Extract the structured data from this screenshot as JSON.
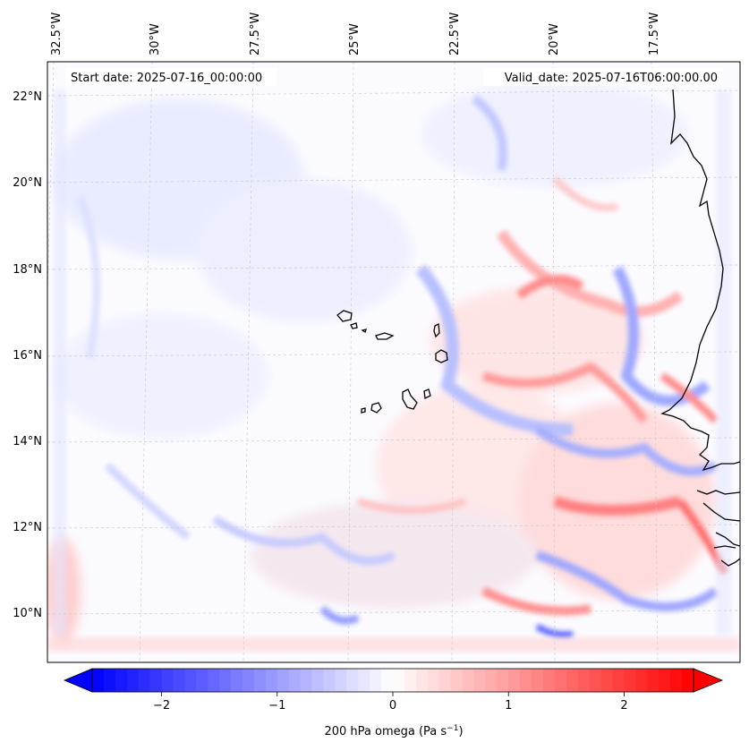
{
  "header": {
    "start_date": "Start date: 2025-07-16_00:00:00",
    "valid_date": "Valid_date: 2025-07-16T06:00:00.00"
  },
  "map": {
    "projection": "lambert-conformal",
    "region": "Eastern tropical Atlantic / West Africa coast incl. Cape Verde",
    "lon_labels": [
      "32.5°W",
      "30°W",
      "27.5°W",
      "25°W",
      "22.5°W",
      "20°W",
      "17.5°W"
    ],
    "lat_labels": [
      "22°N",
      "20°N",
      "18°N",
      "16°N",
      "14°N",
      "12°N",
      "10°N"
    ],
    "gridlines": "dashed-grey",
    "field": "200 hPa vertical velocity (omega)"
  },
  "colorbar": {
    "label": "200 hPa omega (Pa s",
    "label_sup": "−1",
    "label_close": ")",
    "range": [
      -2.6,
      2.6
    ],
    "ticks": [
      "−2",
      "−1",
      "0",
      "1",
      "2"
    ],
    "tick_values": [
      -2,
      -1,
      0,
      1,
      2
    ],
    "colormap": "bwr",
    "extend": "both",
    "colors": {
      "negative": "#0000ff",
      "zero": "#ffffff",
      "positive": "#ff0000"
    }
  }
}
